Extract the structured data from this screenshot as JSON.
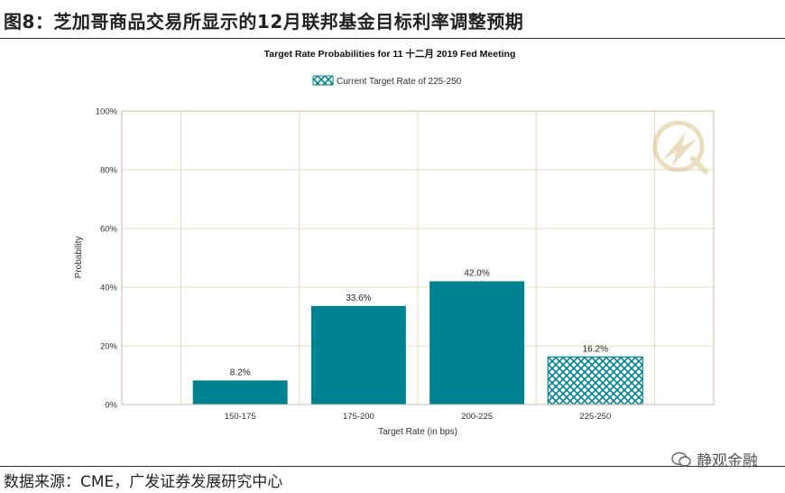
{
  "figure": {
    "title": "图8：芝加哥商品交易所显示的12月联邦基金目标利率调整预期",
    "source": "数据来源：CME，广发证券发展研究中心",
    "watermark": "静观金融"
  },
  "chart_data": {
    "type": "bar",
    "title": "Target Rate Probabilities for 11 十二月 2019 Fed Meeting",
    "xlabel": "Target Rate (in bps)",
    "ylabel": "Probability",
    "categories": [
      "150-175",
      "175-200",
      "200-225",
      "225-250"
    ],
    "values": [
      8.2,
      33.6,
      42.0,
      16.2
    ],
    "value_labels": [
      "8.2%",
      "33.6%",
      "42.0%",
      "16.2%"
    ],
    "ylim": [
      0,
      100
    ],
    "yticks": [
      "0%",
      "20%",
      "40%",
      "60%",
      "80%",
      "100%"
    ],
    "legend": [
      "Current Target Rate of 225-250"
    ],
    "legend_position": "top",
    "highlight_category": "225-250",
    "grid": true,
    "colors": {
      "bar": "#008291",
      "highlight": "#008291",
      "grid": "#e6d9c3"
    }
  }
}
